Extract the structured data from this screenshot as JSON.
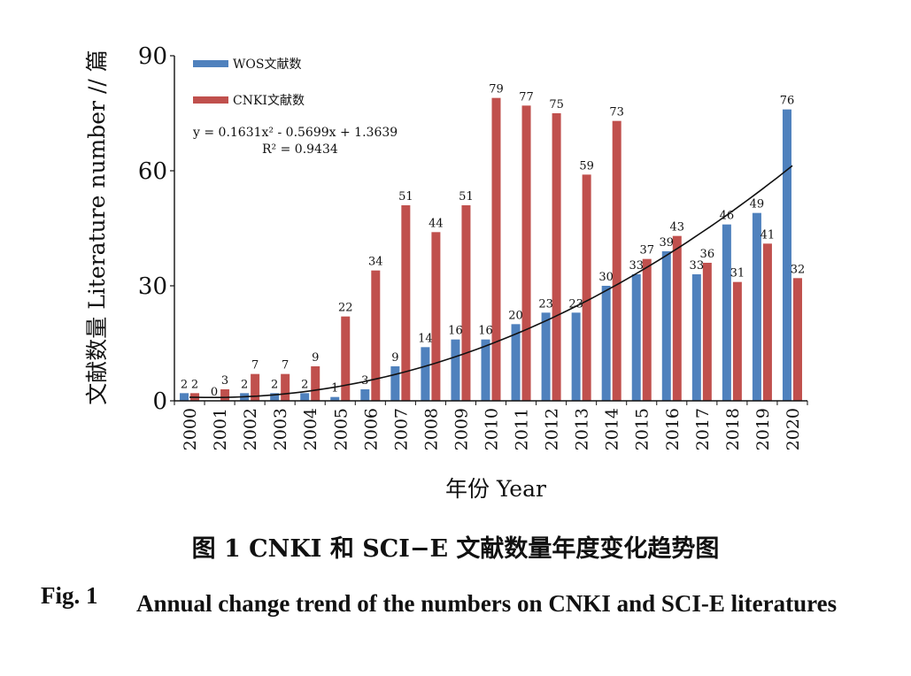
{
  "chart_data": {
    "type": "bar",
    "categories": [
      "2000",
      "2001",
      "2002",
      "2003",
      "2004",
      "2005",
      "2006",
      "2007",
      "2008",
      "2009",
      "2010",
      "2011",
      "2012",
      "2013",
      "2014",
      "2015",
      "2016",
      "2017",
      "2018",
      "2019",
      "2020"
    ],
    "series": [
      {
        "name": "WOS文献数",
        "color": "#4f81bd",
        "values": [
          2,
          0,
          2,
          2,
          2,
          1,
          3,
          9,
          14,
          16,
          16,
          20,
          23,
          23,
          30,
          33,
          39,
          33,
          46,
          49,
          76
        ]
      },
      {
        "name": "CNKI文献数",
        "color": "#c0504d",
        "values": [
          2,
          3,
          7,
          7,
          9,
          22,
          34,
          51,
          44,
          51,
          79,
          77,
          75,
          59,
          73,
          37,
          43,
          36,
          31,
          41,
          32
        ]
      }
    ],
    "trendline": {
      "equation": "y = 0.1631x² - 0.5699x + 1.3639",
      "r_squared": "R² = 0.9434",
      "coefficients": {
        "a": 0.1631,
        "b": -0.5699,
        "c": 1.3639
      },
      "color": "#111111"
    },
    "ylabel": "文献数量 Literature number // 篇",
    "xlabel": "年份 Year",
    "ylim": [
      0,
      90
    ],
    "yticks": [
      0,
      30,
      60,
      90
    ],
    "legend_position": "top-left",
    "grid": false
  },
  "caption": {
    "cn": "图 1   CNKI 和 SCI−E 文献数量年度变化趋势图",
    "en_label": "Fig. 1",
    "en_text": "Annual change trend of the numbers on CNKI and SCI-E literatures"
  }
}
